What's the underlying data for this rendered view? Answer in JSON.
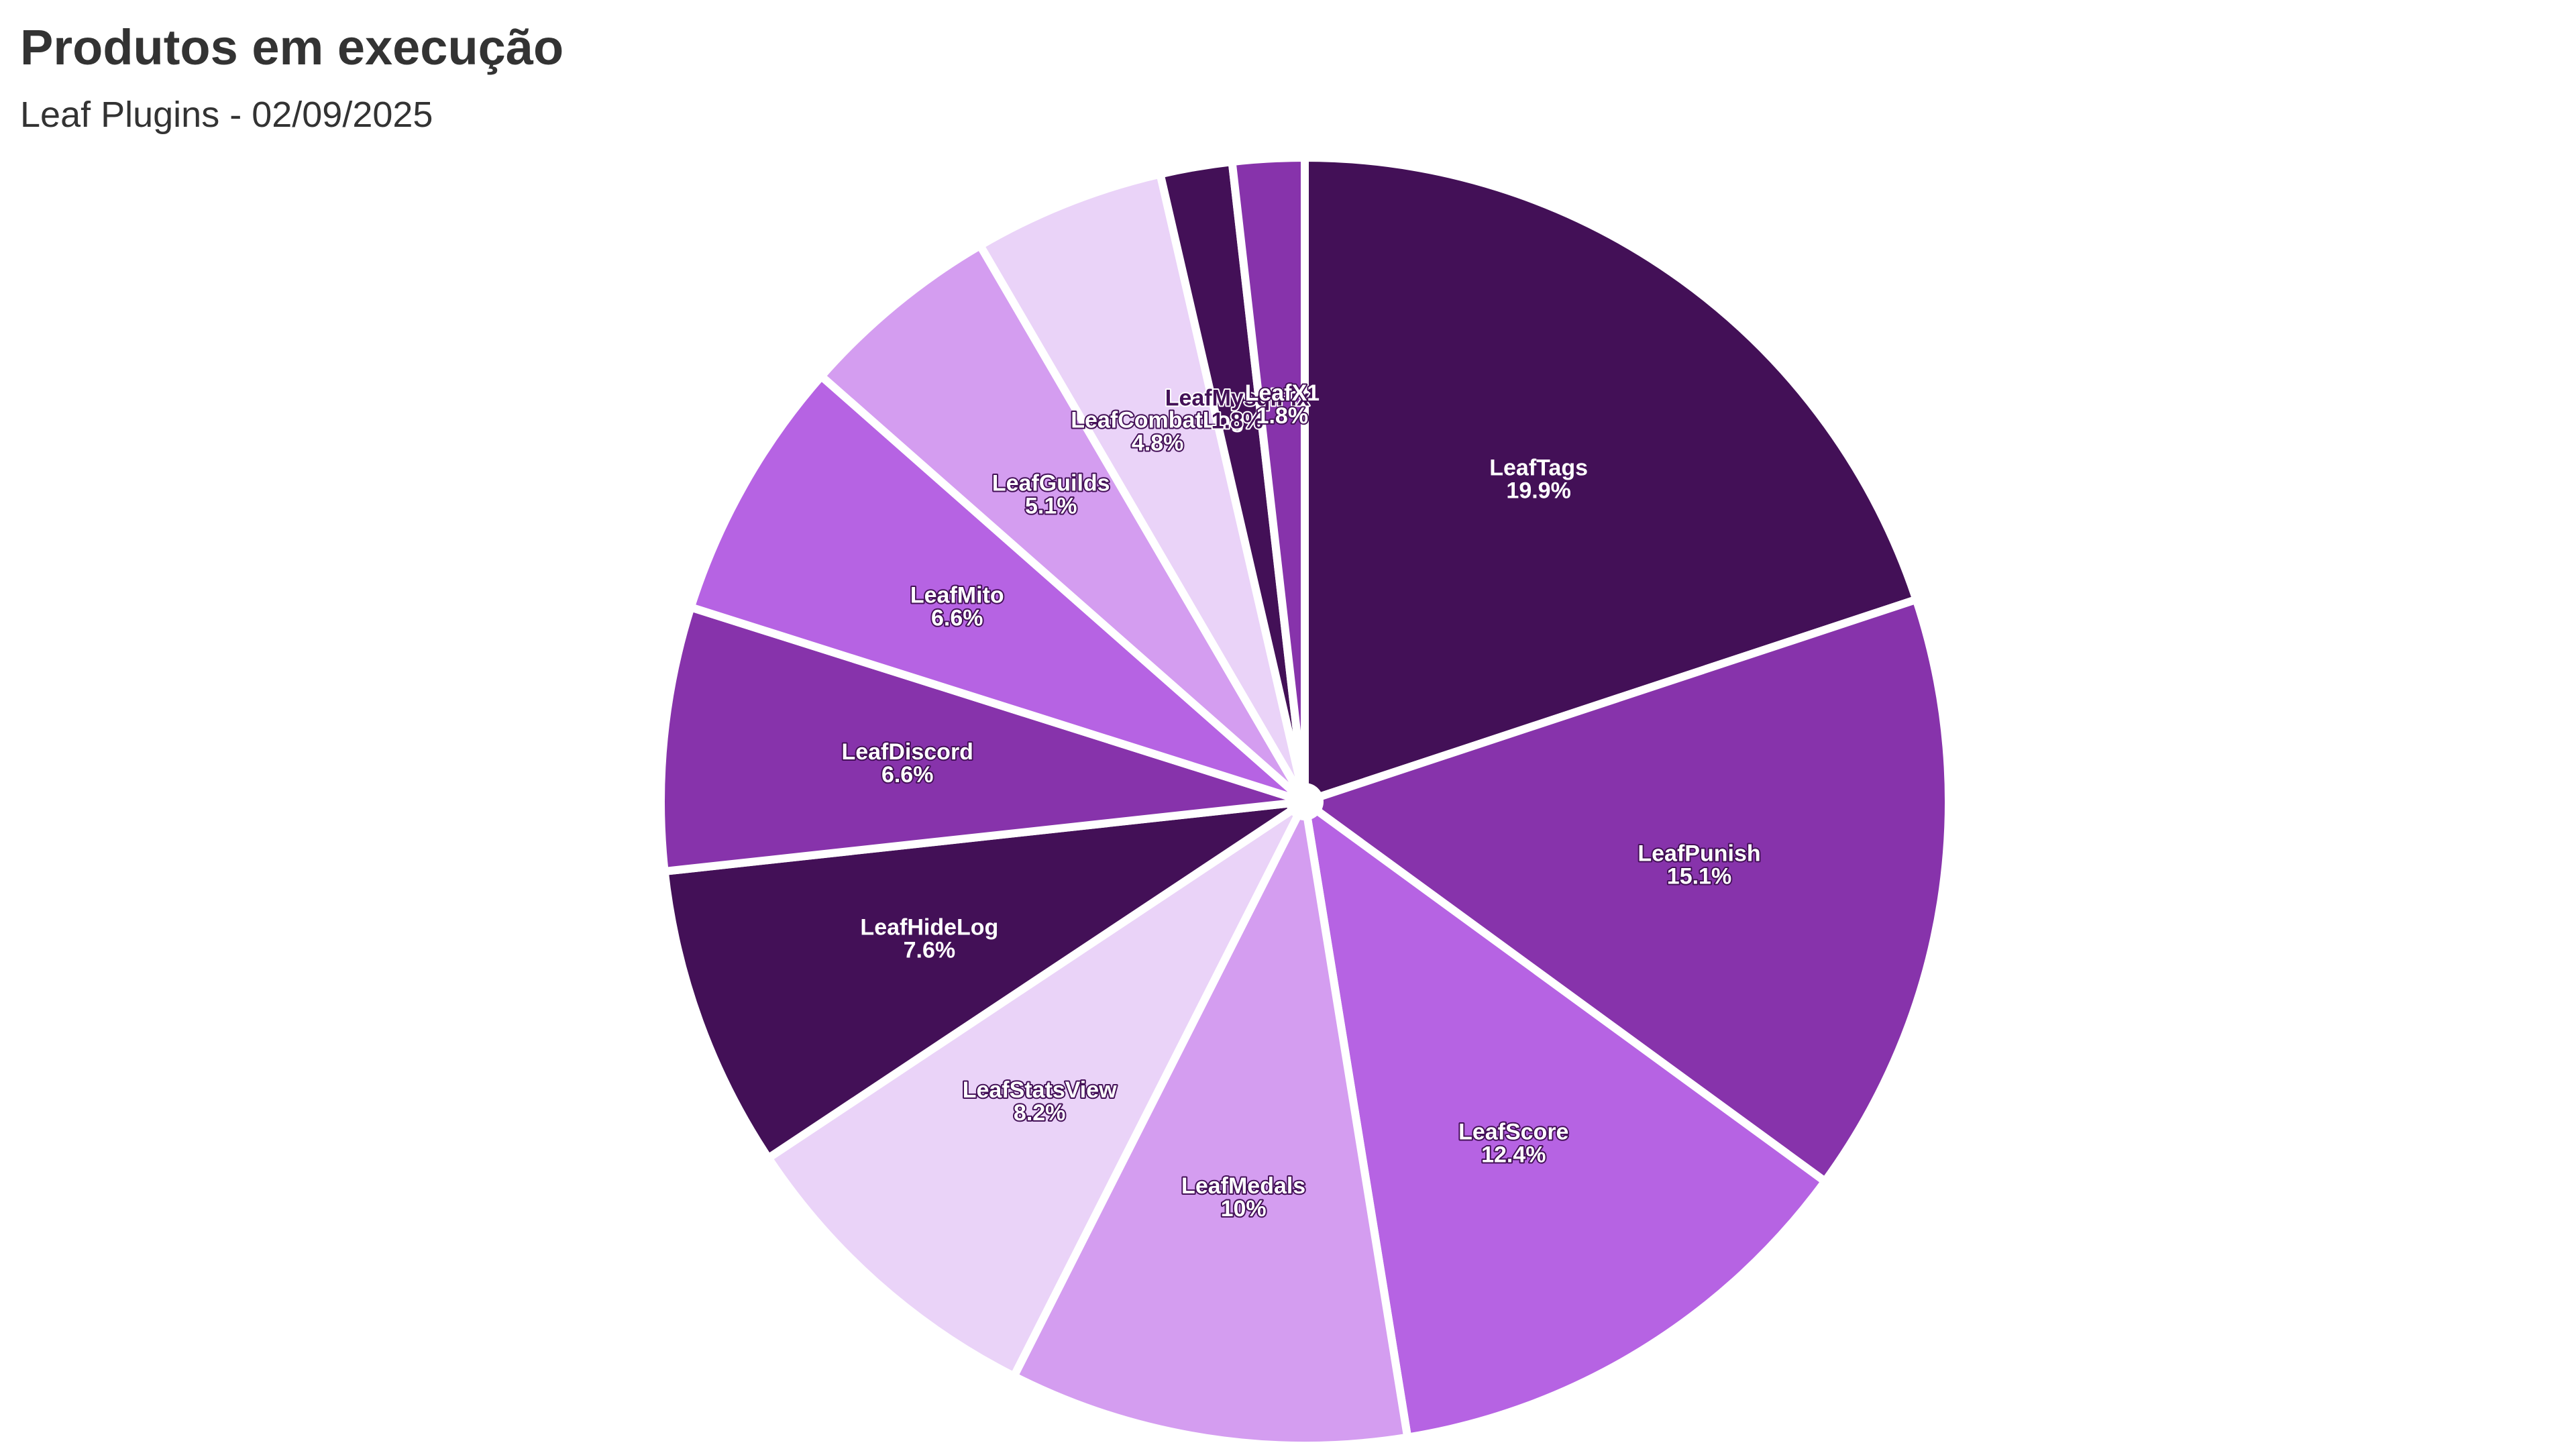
{
  "title": "Produtos em execução",
  "subtitle": "Leaf Plugins - 02/09/2025",
  "chart_data": {
    "type": "pie",
    "title": "Produtos em execução",
    "subtitle": "Leaf Plugins - 02/09/2025",
    "start_direction": "12 o'clock, clockwise",
    "categories": [
      "LeafTags",
      "LeafPunish",
      "LeafScore",
      "LeafMedals",
      "LeafStatsView",
      "LeafHideLog",
      "LeafDiscord",
      "LeafMito",
      "LeafGuilds",
      "LeafCombatLog",
      "LeafMysqlFix",
      "LeafX1"
    ],
    "values": [
      19.9,
      15.1,
      12.4,
      10,
      8.2,
      7.6,
      6.6,
      6.6,
      5.1,
      4.8,
      1.8,
      1.8
    ],
    "value_labels": [
      "19.9%",
      "15.1%",
      "12.4%",
      "10%",
      "8.2%",
      "7.6%",
      "6.6%",
      "6.6%",
      "5.1%",
      "4.8%",
      "1.8%",
      "1.8%"
    ],
    "colors": [
      "#431057",
      "#8733ab",
      "#b663e3",
      "#d49df0",
      "#ead3f8",
      "#431057",
      "#8733ab",
      "#b663e3",
      "#d49df0",
      "#ead3f8",
      "#431057",
      "#8733ab"
    ],
    "label_colors": [
      "#ffffff",
      "#ffffff",
      "#ffffff",
      "#ffffff",
      "#ffffff",
      "#ffffff",
      "#ffffff",
      "#ffffff",
      "#ffffff",
      "#ffffff",
      "#431057",
      "#ffffff"
    ]
  }
}
